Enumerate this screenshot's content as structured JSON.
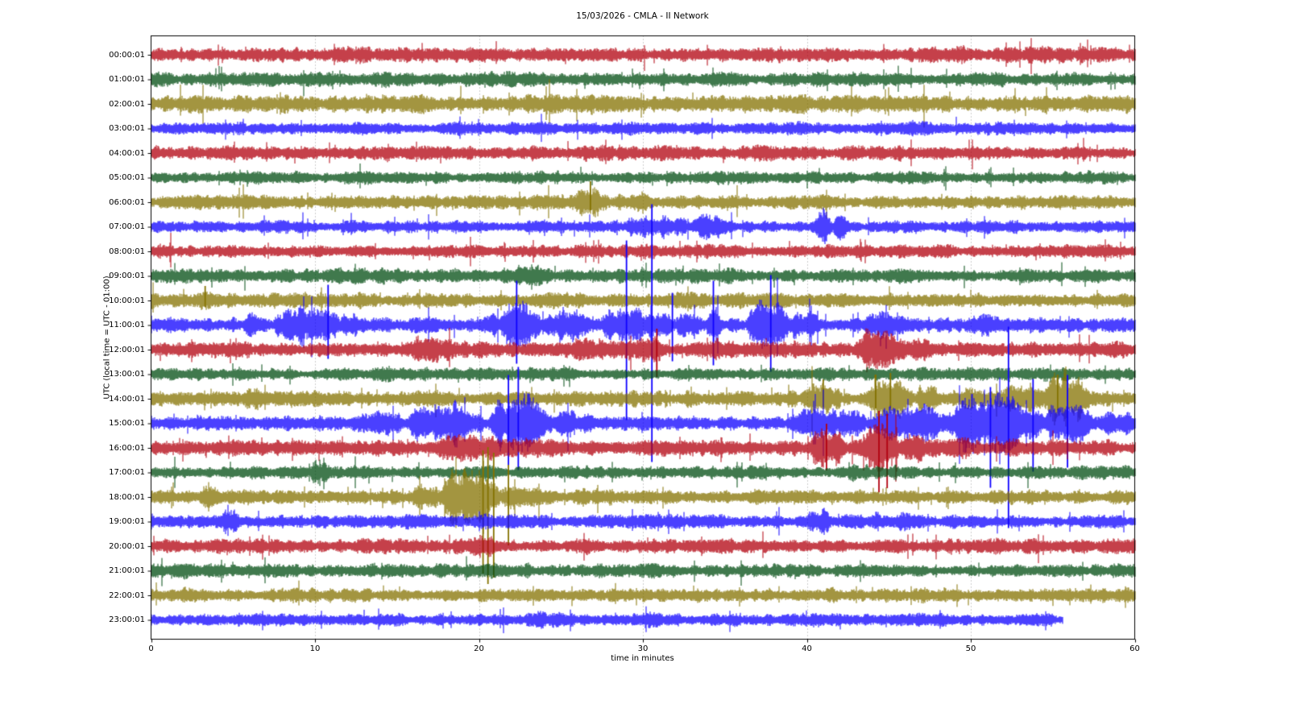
{
  "title": "15/03/2026 - CMLA - II Network",
  "chart_data": {
    "type": "seismogram-dayplot",
    "title": "15/03/2026 - CMLA - II Network",
    "xlabel": "time in minutes",
    "ylabel": "UTC (local time = UTC - 01:00)",
    "xlim": [
      0,
      60
    ],
    "x_ticks": [
      0,
      10,
      20,
      30,
      40,
      50,
      60
    ],
    "grid": "vertical-dotted",
    "minutes_per_row": 60,
    "colors": {
      "red": "#B2000F",
      "green": "#004C12",
      "olive": "#847200",
      "blue": "#0E01FF"
    },
    "grid_color": "#9a9a9a",
    "rows": [
      {
        "label": "00:00:01",
        "color": "red",
        "base_amp": 7.0,
        "end": 60,
        "events": [],
        "spikes": []
      },
      {
        "label": "01:00:01",
        "color": "green",
        "base_amp": 6.2,
        "end": 60,
        "events": [],
        "spikes": []
      },
      {
        "label": "02:00:01",
        "color": "olive",
        "base_amp": 8.0,
        "end": 60,
        "events": [],
        "spikes": []
      },
      {
        "label": "03:00:01",
        "color": "blue",
        "base_amp": 6.0,
        "end": 60,
        "events": [],
        "spikes": []
      },
      {
        "label": "04:00:01",
        "color": "red",
        "base_amp": 6.8,
        "end": 60,
        "events": [],
        "spikes": []
      },
      {
        "label": "05:00:01",
        "color": "green",
        "base_amp": 5.8,
        "end": 60,
        "events": [],
        "spikes": []
      },
      {
        "label": "06:00:01",
        "color": "olive",
        "base_amp": 6.4,
        "end": 60,
        "events": [
          [
            25.8,
            28,
            2.3
          ],
          [
            28,
            31,
            1.6
          ]
        ],
        "spikes": [
          {
            "t": 26.8,
            "up": 26,
            "dn": 10
          }
        ]
      },
      {
        "label": "07:00:01",
        "color": "blue",
        "base_amp": 6.0,
        "end": 60,
        "events": [
          [
            28.5,
            33,
            1.5
          ],
          [
            33,
            35.5,
            2.0
          ],
          [
            40.5,
            41.4,
            2.3
          ],
          [
            41.6,
            42.4,
            2.1
          ]
        ],
        "spikes": []
      },
      {
        "label": "08:00:01",
        "color": "red",
        "base_amp": 6.2,
        "end": 60,
        "events": [
          [
            47.5,
            49,
            1.3
          ]
        ],
        "spikes": []
      },
      {
        "label": "09:00:01",
        "color": "green",
        "base_amp": 6.4,
        "end": 60,
        "events": [
          [
            13.2,
            15.8,
            1.2
          ],
          [
            21.8,
            24.5,
            1.3
          ]
        ],
        "spikes": []
      },
      {
        "label": "10:00:01",
        "color": "olive",
        "base_amp": 7.0,
        "end": 60,
        "events": [
          [
            2.9,
            3.7,
            1.4
          ]
        ],
        "spikes": [
          {
            "t": 3.3,
            "up": 18,
            "dn": 8
          }
        ]
      },
      {
        "label": "11:00:01",
        "color": "blue",
        "base_amp": 7.0,
        "end": 60,
        "events": [
          [
            5.5,
            7.2,
            1.5
          ],
          [
            7.5,
            11.5,
            2.8
          ],
          [
            11.5,
            13,
            1.7
          ],
          [
            20.3,
            21.2,
            1.5
          ],
          [
            21.3,
            23.7,
            2.8
          ],
          [
            23.7,
            27,
            1.9
          ],
          [
            27,
            32,
            2.1
          ],
          [
            32,
            33.5,
            1.7
          ],
          [
            33.8,
            34.8,
            2.6
          ],
          [
            36.3,
            39,
            3.2
          ],
          [
            39,
            40.7,
            1.9
          ],
          [
            43.5,
            45.5,
            1.8
          ],
          [
            50,
            51.8,
            1.5
          ]
        ],
        "spikes": [
          {
            "t": 10.8,
            "up": 50,
            "dn": 42
          },
          {
            "t": 22.3,
            "up": 55,
            "dn": 48
          },
          {
            "t": 29.0,
            "up": 105,
            "dn": 118
          },
          {
            "t": 30.55,
            "up": 150,
            "dn": 170
          },
          {
            "t": 31.8,
            "up": 40,
            "dn": 45
          },
          {
            "t": 34.3,
            "up": 55,
            "dn": 50
          },
          {
            "t": 37.8,
            "up": 62,
            "dn": 58
          }
        ]
      },
      {
        "label": "12:00:01",
        "color": "red",
        "base_amp": 7.0,
        "end": 60,
        "events": [
          [
            15.5,
            19.5,
            1.9
          ],
          [
            25.5,
            28.5,
            1.7
          ],
          [
            28.5,
            31.5,
            1.9
          ],
          [
            30.5,
            31.2,
            2.4
          ],
          [
            34,
            36,
            1.3
          ],
          [
            43,
            46.3,
            2.6
          ],
          [
            46.3,
            48,
            1.5
          ]
        ],
        "spikes": [
          {
            "t": 30.85,
            "up": 26,
            "dn": 34
          }
        ]
      },
      {
        "label": "13:00:01",
        "color": "green",
        "base_amp": 6.0,
        "end": 60,
        "events": [],
        "spikes": []
      },
      {
        "label": "14:00:01",
        "color": "olive",
        "base_amp": 7.0,
        "end": 60,
        "events": [
          [
            5.5,
            7,
            1.4
          ],
          [
            39.8,
            42.2,
            2.4
          ],
          [
            43.4,
            46.6,
            2.6
          ],
          [
            46.6,
            48.2,
            1.6
          ],
          [
            49.5,
            51,
            1.4
          ],
          [
            52,
            54.4,
            1.8
          ],
          [
            54.4,
            57.3,
            3.4
          ],
          [
            57.3,
            58.6,
            1.5
          ]
        ],
        "spikes": [
          {
            "t": 41.0,
            "up": 24,
            "dn": 10
          },
          {
            "t": 44.2,
            "up": 30,
            "dn": 12
          },
          {
            "t": 45.1,
            "up": 32,
            "dn": 12
          },
          {
            "t": 55.3,
            "up": 30,
            "dn": 14
          }
        ]
      },
      {
        "label": "15:00:01",
        "color": "blue",
        "base_amp": 6.5,
        "end": 60,
        "events": [
          [
            12,
            15.5,
            1.7
          ],
          [
            15.5,
            20.5,
            2.8
          ],
          [
            20.5,
            24.5,
            4.2
          ],
          [
            24.5,
            27,
            1.9
          ],
          [
            39,
            44,
            2.6
          ],
          [
            44,
            48.5,
            3.0
          ],
          [
            48.5,
            54.5,
            4.0
          ],
          [
            54.5,
            57.5,
            3.4
          ],
          [
            57.5,
            60,
            1.7
          ]
        ],
        "spikes": [
          {
            "t": 21.8,
            "up": 60,
            "dn": 52
          },
          {
            "t": 22.4,
            "up": 70,
            "dn": 58
          },
          {
            "t": 51.2,
            "up": 45,
            "dn": 80
          },
          {
            "t": 52.3,
            "up": 120,
            "dn": 130
          },
          {
            "t": 53.8,
            "up": 55,
            "dn": 60
          },
          {
            "t": 55.9,
            "up": 60,
            "dn": 55
          }
        ]
      },
      {
        "label": "16:00:01",
        "color": "red",
        "base_amp": 7.0,
        "end": 60,
        "events": [
          [
            17,
            22.5,
            1.8
          ],
          [
            22.5,
            25.5,
            1.4
          ],
          [
            40.2,
            42.4,
            2.8
          ],
          [
            43.4,
            45.6,
            3.2
          ],
          [
            45.6,
            47.5,
            2.0
          ],
          [
            47.5,
            50,
            1.4
          ],
          [
            52,
            53.5,
            1.4
          ]
        ],
        "spikes": [
          {
            "t": 41.2,
            "up": 30,
            "dn": 28
          },
          {
            "t": 44.4,
            "up": 46,
            "dn": 55
          },
          {
            "t": 44.9,
            "up": 42,
            "dn": 50
          }
        ]
      },
      {
        "label": "17:00:01",
        "color": "green",
        "base_amp": 6.0,
        "end": 60,
        "events": [
          [
            9.6,
            11,
            1.9
          ],
          [
            19.8,
            21.6,
            1.5
          ],
          [
            42.5,
            44,
            1.3
          ]
        ],
        "spikes": []
      },
      {
        "label": "18:00:01",
        "color": "olive",
        "base_amp": 6.5,
        "end": 60,
        "events": [
          [
            2.8,
            4.6,
            1.5
          ],
          [
            15.8,
            17.5,
            2.3
          ],
          [
            17.5,
            21.3,
            4.6
          ],
          [
            21.3,
            24,
            1.8
          ],
          [
            26,
            27.5,
            1.3
          ]
        ],
        "spikes": [
          {
            "t": 20.25,
            "up": 58,
            "dn": 95
          },
          {
            "t": 20.55,
            "up": 62,
            "dn": 108
          },
          {
            "t": 20.9,
            "up": 55,
            "dn": 100
          },
          {
            "t": 21.8,
            "up": 40,
            "dn": 60
          }
        ]
      },
      {
        "label": "19:00:01",
        "color": "blue",
        "base_amp": 6.0,
        "end": 60,
        "events": [
          [
            4.3,
            5.5,
            2.2
          ],
          [
            39.9,
            41.4,
            2.4
          ],
          [
            43.5,
            47.6,
            1.4
          ]
        ],
        "spikes": []
      },
      {
        "label": "20:00:01",
        "color": "red",
        "base_amp": 6.5,
        "end": 60,
        "events": [
          [
            0.5,
            2,
            1.2
          ],
          [
            18.8,
            21.5,
            1.5
          ]
        ],
        "spikes": []
      },
      {
        "label": "21:00:01",
        "color": "green",
        "base_amp": 6.0,
        "end": 60,
        "events": [
          [
            0,
            8,
            1.25
          ]
        ],
        "spikes": []
      },
      {
        "label": "22:00:01",
        "color": "olive",
        "base_amp": 6.5,
        "end": 60,
        "events": [],
        "spikes": []
      },
      {
        "label": "23:00:01",
        "color": "blue",
        "base_amp": 6.0,
        "end": 55.6,
        "events": [
          [
            22.5,
            25.5,
            1.25
          ]
        ],
        "spikes": []
      }
    ]
  }
}
